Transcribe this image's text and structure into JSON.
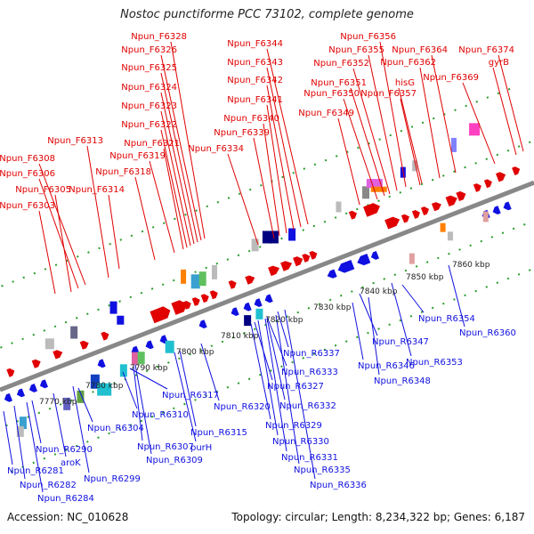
{
  "title": "Nostoc punctiforme PCC 73102, complete genome",
  "footer": {
    "accession": "Accession: NC_010628",
    "summary": "Topology: circular; Length: 8,234,322 bp; Genes: 6,187"
  },
  "colors": {
    "forward": "#e00000",
    "reverse": "#1010e0",
    "backbone": "#888888",
    "ticks": "#2a9d2a"
  },
  "ruler_labels": [
    "7770 kbp",
    "7780 kbp",
    "7790 kbp",
    "7800 kbp",
    "7810 kbp",
    "7820 kbp",
    "7830 kbp",
    "7840 kbp",
    "7850 kbp",
    "7860 kbp"
  ],
  "forward_labels": [
    "Npun_F6328",
    "Npun_F6326",
    "Npun_F6325",
    "Npun_F6324",
    "Npun_F6323",
    "Npun_F6322",
    "Npun_F6321",
    "Npun_F6319",
    "Npun_F6318",
    "Npun_F6313",
    "Npun_F6308",
    "Npun_F6306",
    "Npun_F6305",
    "Npun_F6314",
    "Npun_F6303",
    "Npun_F6344",
    "Npun_F6343",
    "Npun_F6342",
    "Npun_F6341",
    "Npun_F6340",
    "Npun_F6339",
    "Npun_F6334",
    "Npun_F6356",
    "Npun_F6355",
    "Npun_F6352",
    "Npun_F6351",
    "Npun_F6350",
    "Npun_F6349",
    "Npun_F6364",
    "Npun_F6362",
    "hisG",
    "Npun_F6357",
    "Npun_F6374",
    "gyrB",
    "Npun_F6369"
  ],
  "reverse_labels": [
    "Npun_R6354",
    "Npun_R6360",
    "Npun_R6347",
    "Npun_R6353",
    "Npun_R6346",
    "Npun_R6348",
    "Npun_R6337",
    "Npun_R6333",
    "Npun_R6327",
    "Npun_R6332",
    "Npun_R6329",
    "Npun_R6330",
    "Npun_R6331",
    "Npun_R6335",
    "Npun_R6336",
    "Npun_R6317",
    "Npun_R6320",
    "Npun_R6310",
    "Npun_R6304",
    "Npun_R6315",
    "Npun_R6307",
    "purH",
    "Npun_R6309",
    "Npun_R6290",
    "aroK",
    "Npun_R6299",
    "Npun_R6281",
    "Npun_R6282",
    "Npun_R6284"
  ]
}
